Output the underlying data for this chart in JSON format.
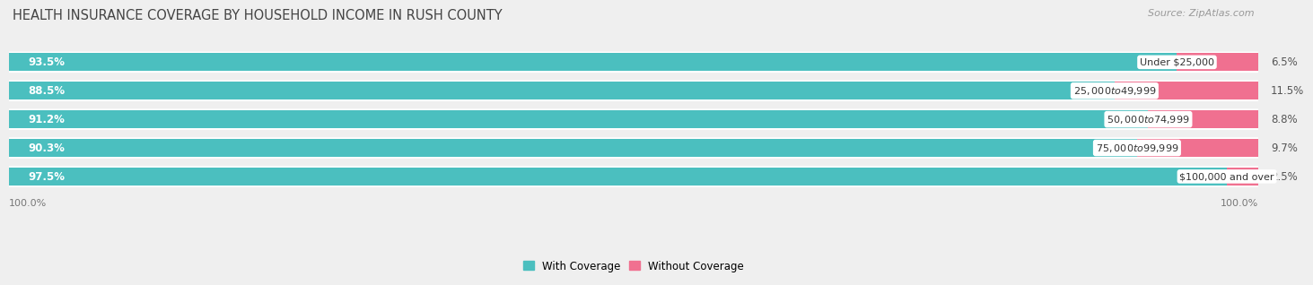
{
  "title": "HEALTH INSURANCE COVERAGE BY HOUSEHOLD INCOME IN RUSH COUNTY",
  "source": "Source: ZipAtlas.com",
  "categories": [
    "Under $25,000",
    "$25,000 to $49,999",
    "$50,000 to $74,999",
    "$75,000 to $99,999",
    "$100,000 and over"
  ],
  "with_coverage": [
    93.5,
    88.5,
    91.2,
    90.3,
    97.5
  ],
  "without_coverage": [
    6.5,
    11.5,
    8.8,
    9.7,
    2.5
  ],
  "color_with": "#4BBFBF",
  "color_without": "#F07090",
  "bar_height": 0.62,
  "background_color": "#EFEFEF",
  "bar_background": "#FFFFFF",
  "title_fontsize": 10.5,
  "label_fontsize": 8.5,
  "tick_fontsize": 8,
  "source_fontsize": 8,
  "legend_fontsize": 8.5,
  "x_left_label": "100.0%",
  "x_right_label": "100.0%"
}
